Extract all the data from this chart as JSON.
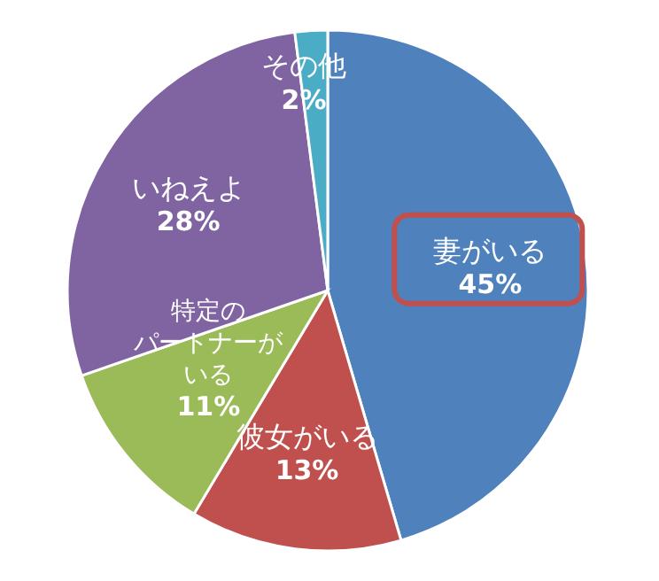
{
  "chart_data": {
    "type": "pie",
    "categories": [
      "妻がいる",
      "彼女がいる",
      "特定のパートナーがいる",
      "いねえよ",
      "その他"
    ],
    "values": [
      45,
      13,
      11,
      28,
      2
    ],
    "value_labels": [
      "45%",
      "13%",
      "11%",
      "28%",
      "2%"
    ],
    "colors": [
      "#4f81bd",
      "#c0504d",
      "#9bbb59",
      "#8064a2",
      "#4bacc6"
    ]
  }
}
